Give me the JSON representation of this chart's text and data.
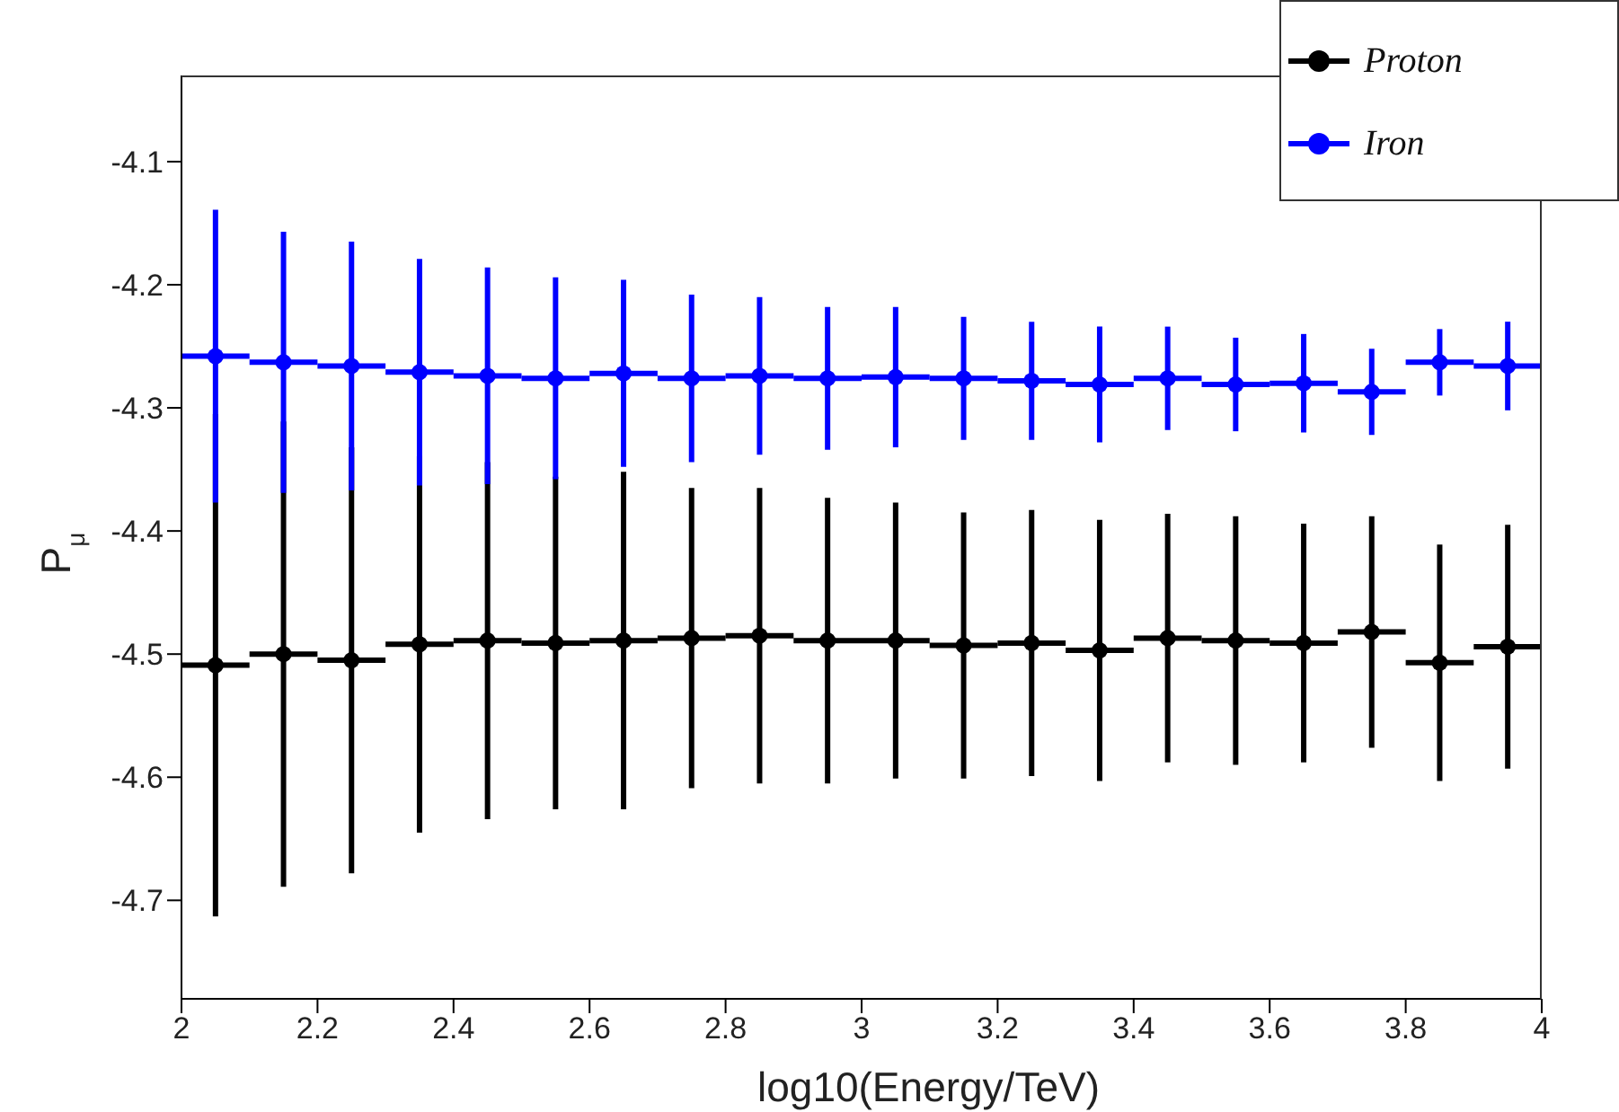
{
  "chart_data": {
    "type": "scatter",
    "xlabel": "log10(Energy/TeV)",
    "ylabel": "P$_{μ}$",
    "x": [
      2.05,
      2.15,
      2.25,
      2.35,
      2.45,
      2.55,
      2.65,
      2.75,
      2.85,
      2.95,
      3.05,
      3.15,
      3.25,
      3.35,
      3.45,
      3.55,
      3.65,
      3.75,
      3.85,
      3.95
    ],
    "series": [
      {
        "name": "Proton",
        "color": "#000000",
        "values": [
          -4.509,
          -4.5,
          -4.505,
          -4.492,
          -4.489,
          -4.491,
          -4.489,
          -4.487,
          -4.485,
          -4.489,
          -4.489,
          -4.493,
          -4.491,
          -4.497,
          -4.487,
          -4.489,
          -4.491,
          -4.482,
          -4.507,
          -4.494
        ],
        "errors": [
          0.204,
          0.189,
          0.173,
          0.153,
          0.145,
          0.135,
          0.137,
          0.122,
          0.12,
          0.116,
          0.112,
          0.108,
          0.108,
          0.106,
          0.101,
          0.101,
          0.097,
          0.094,
          0.096,
          0.099
        ],
        "xerrors": [
          0.05,
          0.05,
          0.05,
          0.05,
          0.05,
          0.05,
          0.05,
          0.05,
          0.05,
          0.05,
          0.05,
          0.05,
          0.05,
          0.05,
          0.05,
          0.05,
          0.05,
          0.05,
          0.05,
          0.05
        ]
      },
      {
        "name": "Iron",
        "color": "#0000ff",
        "values": [
          -4.258,
          -4.263,
          -4.266,
          -4.271,
          -4.274,
          -4.276,
          -4.272,
          -4.276,
          -4.274,
          -4.276,
          -4.275,
          -4.276,
          -4.278,
          -4.281,
          -4.276,
          -4.281,
          -4.28,
          -4.287,
          -4.263,
          -4.266
        ],
        "errors": [
          0.119,
          0.106,
          0.101,
          0.092,
          0.088,
          0.082,
          0.076,
          0.068,
          0.064,
          0.058,
          0.057,
          0.05,
          0.048,
          0.047,
          0.042,
          0.038,
          0.04,
          0.035,
          0.027,
          0.036
        ],
        "xerrors": [
          0.05,
          0.05,
          0.05,
          0.05,
          0.05,
          0.05,
          0.05,
          0.05,
          0.05,
          0.05,
          0.05,
          0.05,
          0.05,
          0.05,
          0.05,
          0.05,
          0.05,
          0.05,
          0.05,
          0.05
        ]
      }
    ],
    "xlim": [
      2,
      4
    ],
    "xticks": [
      2,
      2.2,
      2.4,
      2.6,
      2.8,
      3,
      3.2,
      3.4,
      3.6,
      3.8,
      4
    ],
    "ylim": [
      -4.78,
      -4.03
    ],
    "yticks": [
      -4.7,
      -4.6,
      -4.5,
      -4.4,
      -4.3,
      -4.2,
      -4.1
    ],
    "grid": false,
    "legend": "top right",
    "marker": "circle"
  }
}
